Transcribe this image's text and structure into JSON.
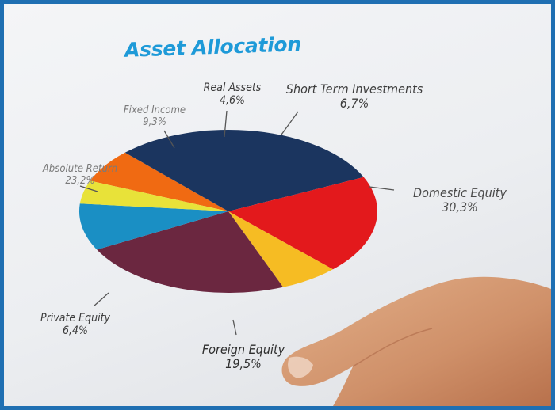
{
  "chart_data": {
    "type": "pie",
    "title": "Asset Allocation",
    "slices": [
      {
        "label": "Short Term Investments",
        "value_text": "6,7%",
        "value": 6.7,
        "color": "#f06a12"
      },
      {
        "label": "Domestic Equity",
        "value_text": "30,3%",
        "value": 30.3,
        "color": "#1b355f"
      },
      {
        "label": "Foreign Equity",
        "value_text": "19,5%",
        "value": 19.5,
        "color": "#e3191c"
      },
      {
        "label": "Private Equity",
        "value_text": "6,4%",
        "value": 6.4,
        "color": "#f6bc23"
      },
      {
        "label": "Absolute Return",
        "value_text": "23,2%",
        "value": 23.2,
        "color": "#6b2740"
      },
      {
        "label": "Fixed Income",
        "value_text": "9,3%",
        "value": 9.3,
        "color": "#1a8fc4"
      },
      {
        "label": "Real Assets",
        "value_text": "4,6%",
        "value": 4.6,
        "color": "#e8e239"
      }
    ]
  }
}
